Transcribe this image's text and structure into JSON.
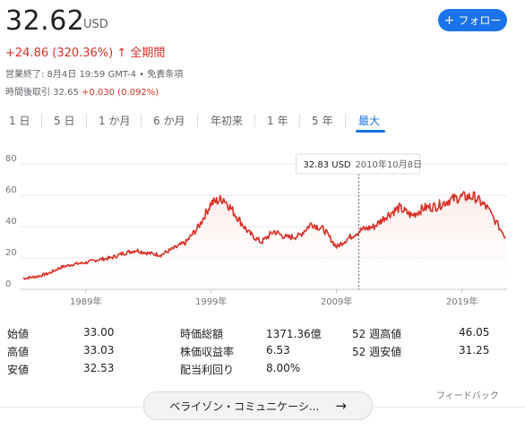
{
  "quote": {
    "price": "32.62",
    "currency": "USD",
    "change": "+24.86 (320.36%)",
    "change_arrow": "↑",
    "range_label": "全期間",
    "close_info": "営業終了: 8月4日 19:59 GMT-4 • 免責条項",
    "after_hours_label": "時間後取引 32.65",
    "after_hours_change": "+0.030 (0.092%)"
  },
  "follow_button": {
    "icon": "plus-icon",
    "label": "フォロー"
  },
  "tabs": [
    {
      "label": "1 日",
      "active": false
    },
    {
      "label": "5 日",
      "active": false
    },
    {
      "label": "1 か月",
      "active": false
    },
    {
      "label": "6 か月",
      "active": false
    },
    {
      "label": "年初来",
      "active": false
    },
    {
      "label": "1 年",
      "active": false
    },
    {
      "label": "5 年",
      "active": false
    },
    {
      "label": "最大",
      "active": true
    }
  ],
  "chart_data": {
    "type": "area",
    "y_ticks": [
      "80",
      "60",
      "40",
      "20",
      "0"
    ],
    "x_ticks": [
      "1989年",
      "1999年",
      "2009年",
      "2019年"
    ],
    "ylim": [
      0,
      80
    ],
    "xlim": [
      1983.8,
      2022.6
    ],
    "grid": true,
    "line_color": "#d93025",
    "tooltip": {
      "value": "32.83 USD",
      "date": "2010年10月8日",
      "x": 2010.77
    },
    "series": [
      {
        "x": [
          1984,
          1985,
          1986,
          1987,
          1988,
          1989,
          1990,
          1991,
          1992,
          1993,
          1994,
          1995,
          1996,
          1997,
          1998,
          1999,
          2000,
          2001,
          2002,
          2003,
          2004,
          2005,
          2006,
          2007,
          2008,
          2009,
          2010,
          2011,
          2012,
          2013,
          2014,
          2015,
          2016,
          2017,
          2018,
          2019,
          2020,
          2021,
          2022.5
        ],
        "y": [
          7,
          8,
          10,
          14,
          16,
          17,
          19,
          20,
          23,
          25,
          23,
          22,
          26,
          30,
          40,
          55,
          58,
          47,
          36,
          30,
          37,
          33,
          34,
          42,
          38,
          27,
          33,
          38,
          40,
          47,
          52,
          47,
          52,
          53,
          57,
          59,
          59,
          52,
          33
        ]
      }
    ]
  },
  "stats": {
    "col1": [
      {
        "label": "始値",
        "value": "33.00"
      },
      {
        "label": "高値",
        "value": "33.03"
      },
      {
        "label": "安値",
        "value": "32.53"
      }
    ],
    "col2": [
      {
        "label": "時価総額",
        "value": "1371.36億"
      },
      {
        "label": "株価収益率",
        "value": "6.53"
      },
      {
        "label": "配当利回り",
        "value": "8.00%"
      }
    ],
    "col3": [
      {
        "label": "52 週高値",
        "value": "46.05"
      },
      {
        "label": "52 週安値",
        "value": "31.25"
      }
    ]
  },
  "feedback": "フィードバック",
  "company_chip": {
    "label": "ベライゾン・コミュニケーシ...",
    "icon": "arrow-right-icon"
  }
}
